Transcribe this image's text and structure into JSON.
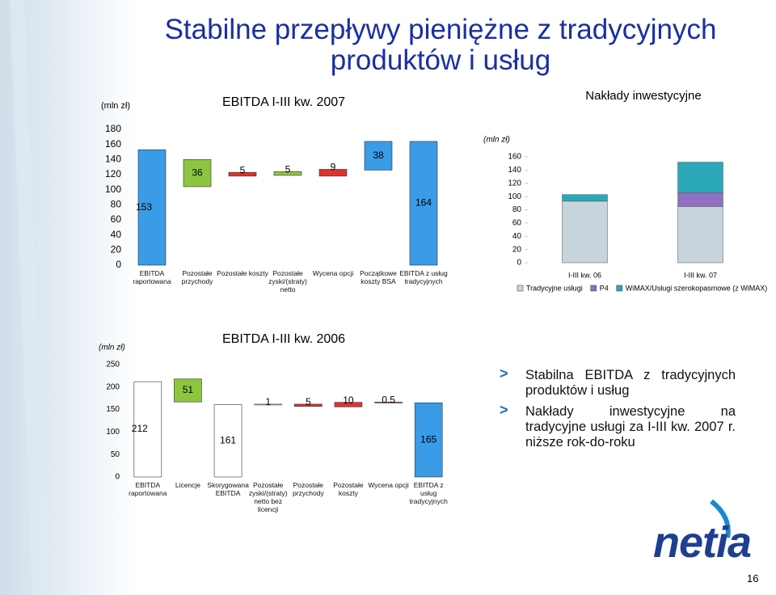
{
  "title": "Stabilne przepływy pieniężne z tradycyjnych produktów i usług",
  "chart_data": [
    {
      "type": "waterfall",
      "title": "EBITDA I-III kw. 2007",
      "unit": "(mln zł)",
      "categories": [
        "EBITDA raportowana",
        "Pozostałe przychody",
        "Pozostałe koszty",
        "Pozostałe zyski/(straty) netto",
        "Wycena opcji",
        "Początkowe koszty BSA",
        "EBITDA z usług tradycyjnych"
      ],
      "values": [
        153,
        36,
        5,
        5,
        9,
        38,
        164
      ],
      "bases": [
        0,
        104,
        118,
        119,
        118,
        126,
        0
      ],
      "colors": [
        "#3a9be6",
        "#8cc63f",
        "#e03030",
        "#8cc63f",
        "#e03030",
        "#3a9be6",
        "#3a9be6"
      ],
      "ylim": [
        0,
        180
      ],
      "yticks": [
        0,
        20,
        40,
        60,
        80,
        100,
        120,
        140,
        160,
        180
      ]
    },
    {
      "type": "stacked_bar",
      "title": "Nakłady inwestycyjne",
      "unit": "(mln zł)",
      "categories": [
        "I-III kw. 06",
        "I-III kw. 07"
      ],
      "series": [
        {
          "name": "Tradycyjne usługi",
          "color": "#c8d4dc",
          "values": [
            93,
            85
          ]
        },
        {
          "name": "P4",
          "color": "#9070c0",
          "values": [
            0,
            21
          ]
        },
        {
          "name": "WiMAX/Usługi szerokopasmowe (z WiMAX)",
          "color": "#2aa8b8",
          "values": [
            10,
            46
          ]
        }
      ],
      "ylim": [
        0,
        160
      ],
      "yticks": [
        0,
        20,
        40,
        60,
        80,
        100,
        120,
        140,
        160
      ],
      "legend": "bottom"
    },
    {
      "type": "waterfall",
      "title": "EBITDA I-III kw. 2006",
      "unit": "(mln zł)",
      "categories": [
        "EBITDA raportowana",
        "Licencje",
        "Skorygowana EBITDA",
        "Pozostałe zyski/(straty) netto bez licencji",
        "Pozostałe przychody",
        "Pozostałe koszty",
        "Wycena opcji",
        "EBITDA z usług tradycyjnych"
      ],
      "values": [
        212,
        51,
        161,
        1,
        5,
        10,
        0.5,
        165
      ],
      "bases": [
        0,
        167,
        0,
        161,
        157,
        156,
        166,
        0
      ],
      "colors": [
        "#ffffff",
        "#8cc63f",
        "#ffffff",
        "#ffffff",
        "#e03030",
        "#e03030",
        "#e03030",
        "#3a9be6"
      ],
      "ylim": [
        0,
        250
      ],
      "yticks": [
        0,
        50,
        100,
        150,
        200,
        250
      ]
    }
  ],
  "bullets": [
    "Stabilna EBITDA z tradycyjnych produktów i usług",
    "Nakłady inwestycyjne na tradycyjne usługi za I-III kw. 2007 r. niższe rok-do-roku"
  ],
  "logo": "netia",
  "page_number": "16"
}
